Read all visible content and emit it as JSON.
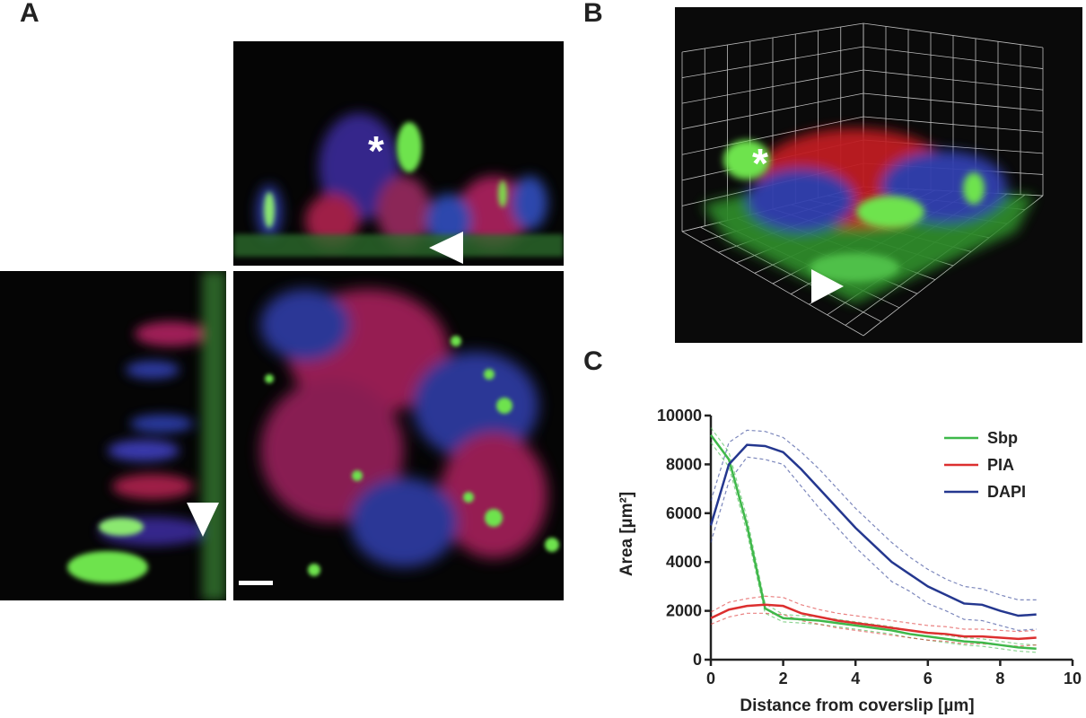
{
  "panels": {
    "a": {
      "label": "A"
    },
    "b": {
      "label": "B"
    },
    "c": {
      "label": "C"
    }
  },
  "colors": {
    "sbp": "#3fb84a",
    "pia": "#dc2f2f",
    "dapi": "#24378f",
    "background": "#050505"
  },
  "chart_data": {
    "type": "line",
    "xlabel": "Distance from coverslip [µm]",
    "ylabel": "Area [µm²]",
    "xlim": [
      0,
      10
    ],
    "ylim": [
      0,
      10000
    ],
    "xticks": [
      0,
      2,
      4,
      6,
      8,
      10
    ],
    "yticks": [
      0,
      2000,
      4000,
      6000,
      8000,
      10000
    ],
    "grid": false,
    "legend_position": "top-right",
    "series": [
      {
        "name": "Sbp",
        "color": "#3fb84a",
        "x": [
          0,
          0.5,
          1,
          1.5,
          2,
          2.5,
          3,
          3.5,
          4,
          4.5,
          5,
          5.5,
          6,
          6.5,
          7,
          7.5,
          8,
          8.5,
          9
        ],
        "y": [
          9200,
          8200,
          5500,
          2100,
          1700,
          1650,
          1600,
          1500,
          1400,
          1300,
          1200,
          1050,
          950,
          850,
          750,
          700,
          600,
          500,
          450
        ],
        "upper": [
          9500,
          8500,
          5800,
          2300,
          1850,
          1800,
          1750,
          1650,
          1550,
          1450,
          1350,
          1200,
          1100,
          1000,
          900,
          850,
          750,
          650,
          600
        ],
        "lower": [
          8900,
          7900,
          5200,
          1900,
          1550,
          1500,
          1450,
          1350,
          1250,
          1150,
          1050,
          900,
          800,
          700,
          600,
          550,
          450,
          350,
          300
        ]
      },
      {
        "name": "PIA",
        "color": "#dc2f2f",
        "x": [
          0,
          0.5,
          1,
          1.5,
          2,
          2.5,
          3,
          3.5,
          4,
          4.5,
          5,
          5.5,
          6,
          6.5,
          7,
          7.5,
          8,
          8.5,
          9
        ],
        "y": [
          1700,
          2050,
          2200,
          2250,
          2200,
          1900,
          1750,
          1600,
          1500,
          1400,
          1300,
          1200,
          1100,
          1050,
          950,
          950,
          900,
          850,
          900
        ],
        "upper": [
          1950,
          2350,
          2500,
          2600,
          2550,
          2250,
          2050,
          1900,
          1800,
          1700,
          1600,
          1500,
          1400,
          1350,
          1250,
          1250,
          1200,
          1150,
          1200
        ],
        "lower": [
          1450,
          1750,
          1900,
          1900,
          1850,
          1600,
          1450,
          1300,
          1200,
          1100,
          1000,
          900,
          800,
          750,
          650,
          650,
          600,
          550,
          600
        ]
      },
      {
        "name": "DAPI",
        "color": "#24378f",
        "x": [
          0,
          0.5,
          1,
          1.5,
          2,
          2.5,
          3,
          3.5,
          4,
          4.5,
          5,
          5.5,
          6,
          6.5,
          7,
          7.5,
          8,
          8.5,
          9
        ],
        "y": [
          5500,
          8000,
          8800,
          8750,
          8500,
          7800,
          7000,
          6200,
          5400,
          4700,
          4000,
          3500,
          3000,
          2650,
          2300,
          2250,
          2000,
          1800,
          1850
        ],
        "upper": [
          6500,
          8900,
          9400,
          9350,
          9100,
          8500,
          7800,
          7000,
          6200,
          5500,
          4800,
          4200,
          3700,
          3300,
          3000,
          2900,
          2650,
          2450,
          2450
        ],
        "lower": [
          4800,
          7300,
          8300,
          8200,
          8000,
          7100,
          6200,
          5400,
          4600,
          3900,
          3200,
          2800,
          2300,
          2000,
          1650,
          1600,
          1400,
          1200,
          1250
        ]
      }
    ]
  }
}
